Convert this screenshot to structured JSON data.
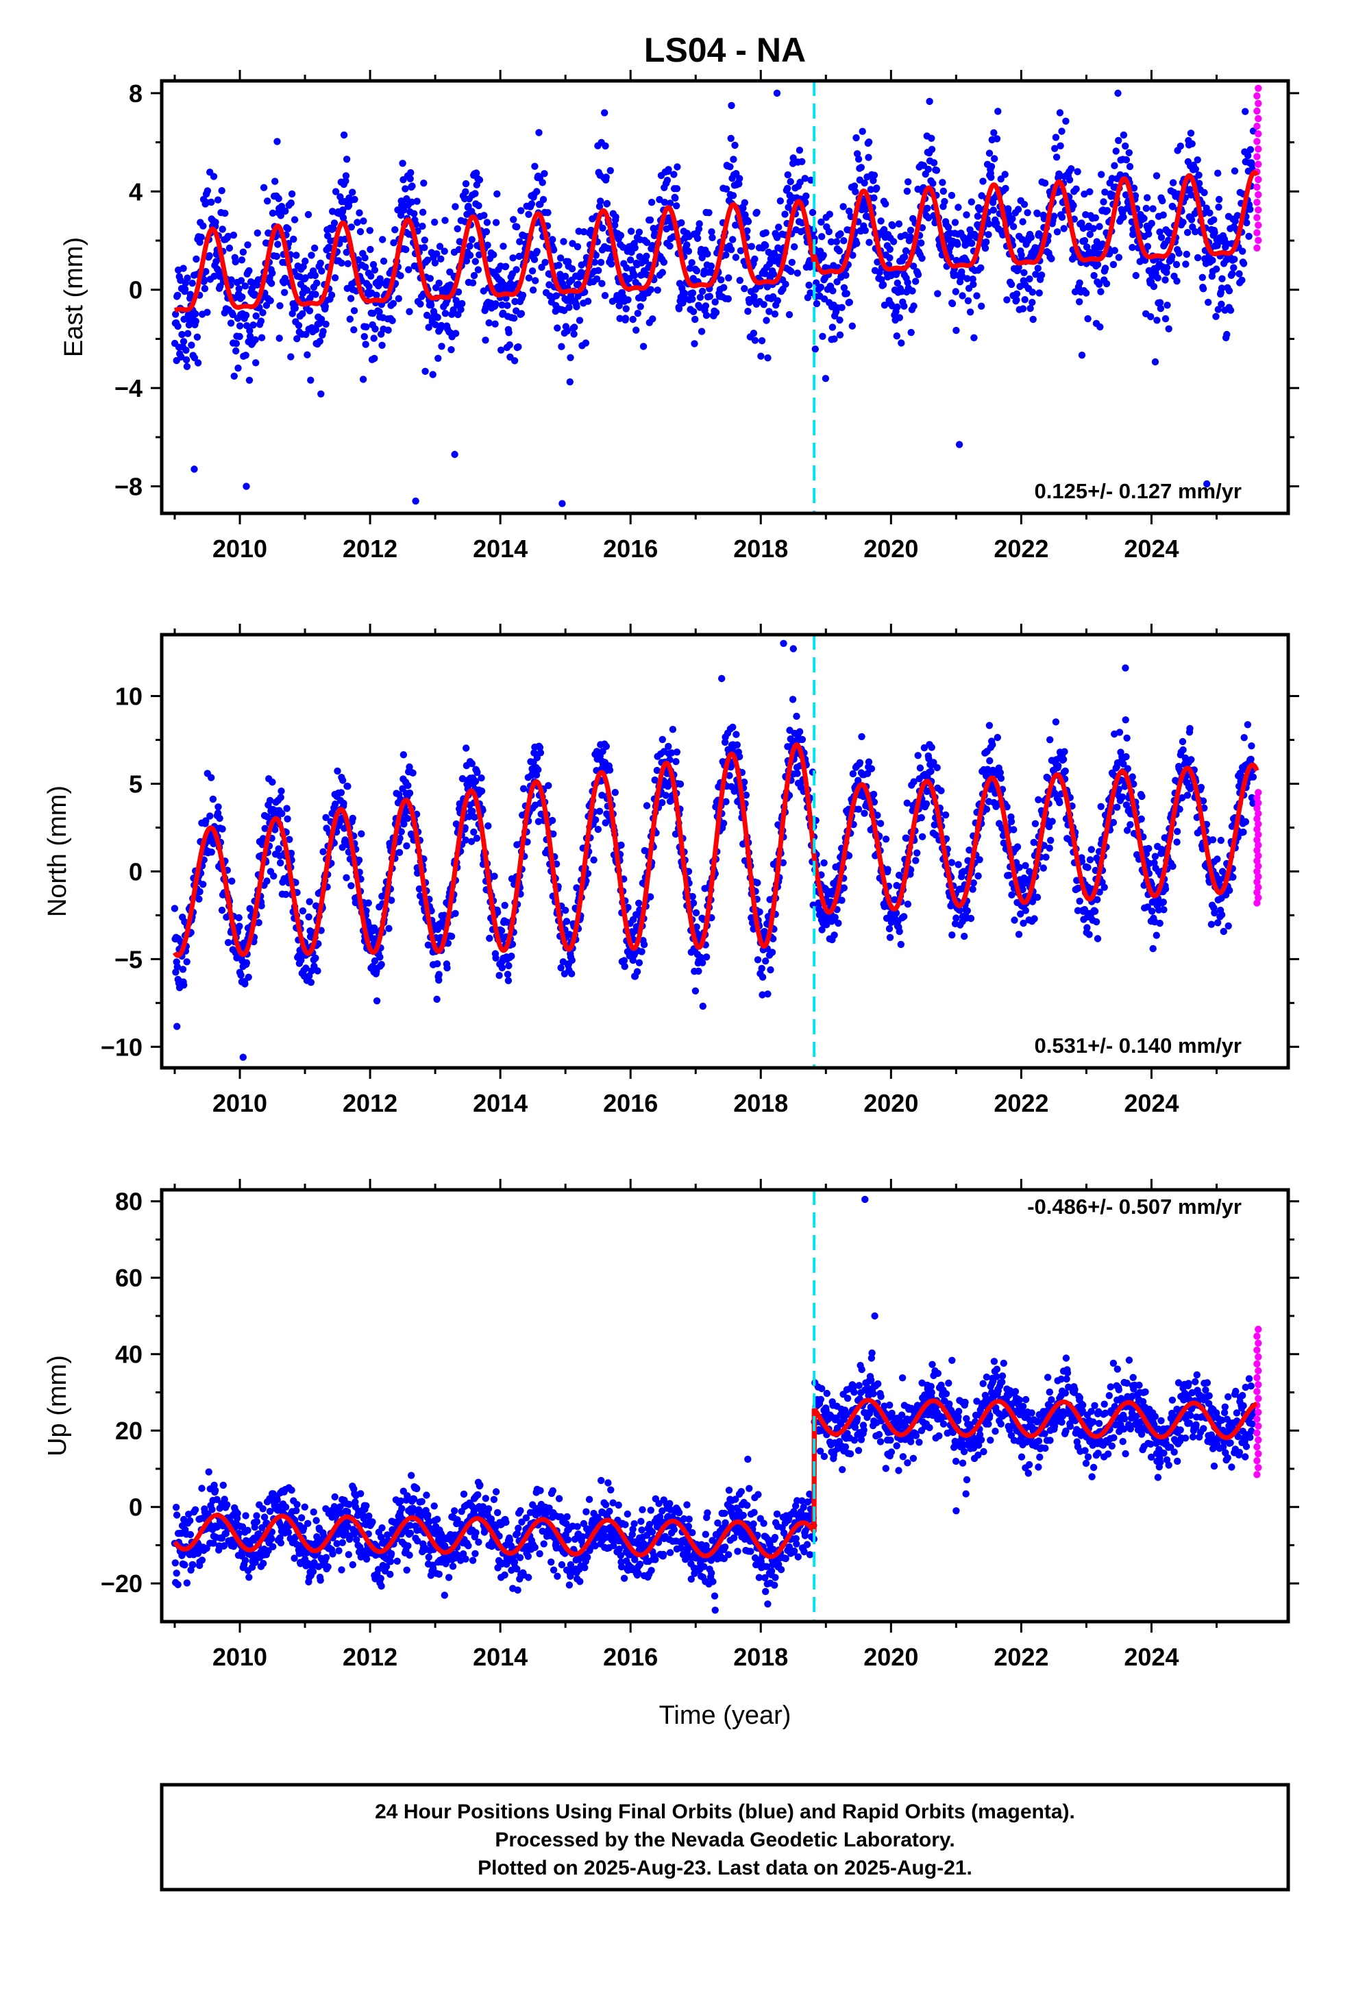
{
  "chart_data": {
    "type": "scatter",
    "title": "LS04 - NA",
    "xlabel": "Time (year)",
    "xlim": [
      2008.8,
      2026.1
    ],
    "x_ticks": [
      "2010",
      "2012",
      "2014",
      "2016",
      "2018",
      "2020",
      "2022",
      "2024"
    ],
    "step_epoch": 2018.82,
    "legend": "none",
    "grid": false,
    "colors": {
      "final_orbits": "#0000ff",
      "rapid_orbits": "#ff00ff",
      "model": "#ff0000",
      "step_line": "#00e5ee",
      "frame": "#000000"
    },
    "panels": [
      {
        "ylabel": "East (mm)",
        "ylim": [
          -9.1,
          8.5
        ],
        "y_ticks": [
          "8",
          "4",
          "0",
          "−4",
          "−8"
        ],
        "rate": "0.125+/- 0.127 mm/yr",
        "model": {
          "offset_before": 0.3,
          "offset_after": 0.6,
          "rate_mm_per_yr": 0.125,
          "annual_amp": 1.6,
          "annual_peak": 0.58,
          "semiannual_amp": 0.5,
          "start_value": -2.1
        },
        "scatter_sd": 1.3,
        "outliers": [
          [
            2018.25,
            8.0
          ],
          [
            2017.55,
            7.5
          ],
          [
            2015.6,
            7.2
          ],
          [
            2011.6,
            6.3
          ],
          [
            2014.95,
            -8.7
          ],
          [
            2012.7,
            -8.6
          ],
          [
            2013.3,
            -6.7
          ],
          [
            2009.3,
            -7.3
          ],
          [
            2010.1,
            -8.0
          ],
          [
            2021.05,
            -6.3
          ],
          [
            2024.85,
            -7.9
          ]
        ],
        "rapid": {
          "x": 2025.62,
          "range": [
            1.7,
            8.2
          ]
        }
      },
      {
        "ylabel": "North (mm)",
        "ylim": [
          -11.2,
          13.5
        ],
        "y_ticks": [
          "10",
          "5",
          "0",
          "−5",
          "−10"
        ],
        "rate": "0.531+/- 0.140 mm/yr",
        "model": {
          "offset_before": -1.3,
          "offset_after": -0.6,
          "rate_mm_per_yr": 0.531,
          "annual_amp_start": 3.5,
          "annual_amp_step": 5.8,
          "annual_amp_after": 3.6,
          "annual_peak": 0.55,
          "start_value": -4.8,
          "step_jump": -8.0
        },
        "scatter_sd": 1.2,
        "outliers": [
          [
            2018.35,
            13.0
          ],
          [
            2018.5,
            12.7
          ],
          [
            2023.6,
            11.6
          ],
          [
            2010.05,
            -10.6
          ],
          [
            2017.4,
            11.0
          ]
        ],
        "rapid": {
          "x": 2025.62,
          "range": [
            -1.8,
            4.5
          ]
        }
      },
      {
        "ylabel": "Up (mm)",
        "ylim": [
          -30,
          83
        ],
        "y_ticks": [
          "80",
          "60",
          "40",
          "20",
          "0",
          "−20"
        ],
        "rate": "-0.486+/- 0.507 mm/yr",
        "model": {
          "offset_before": -6.5,
          "offset_after": 25.0,
          "rate_mm_per_yr": -0.486,
          "annual_amp": 4.5,
          "annual_peak": 0.65,
          "step_jump": 35.0
        },
        "scatter_sd": 4.5,
        "outliers": [
          [
            2019.6,
            80.5
          ],
          [
            2019.75,
            50.0
          ],
          [
            2017.8,
            12.5
          ],
          [
            2021.0,
            -1.0
          ],
          [
            2017.3,
            -27.0
          ]
        ],
        "rapid": {
          "x": 2025.62,
          "range": [
            8.5,
            46.5
          ]
        }
      }
    ]
  },
  "footer": {
    "line1": "24 Hour Positions Using Final Orbits (blue) and Rapid Orbits (magenta).",
    "line2": "Processed by the Nevada Geodetic Laboratory.",
    "line3": "Plotted on 2025-Aug-23. Last data on 2025-Aug-21."
  }
}
